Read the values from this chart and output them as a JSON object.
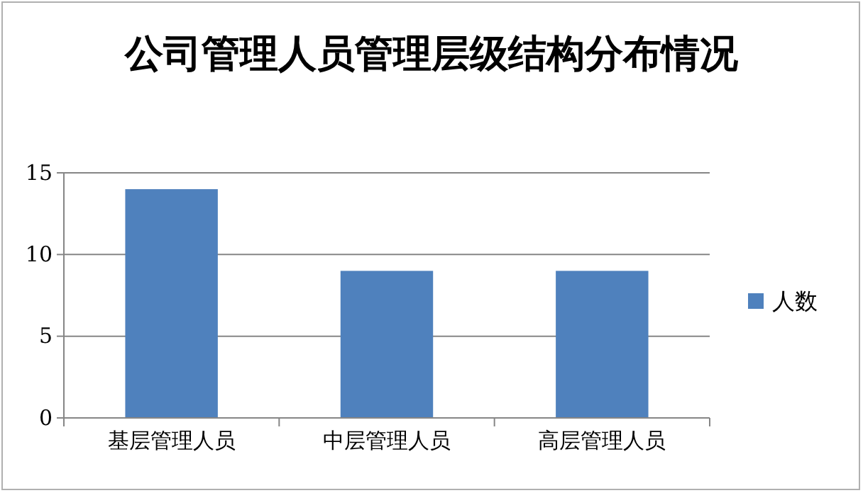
{
  "chart_data": {
    "type": "bar",
    "title": "公司管理人员管理层级结构分布情况",
    "categories": [
      "基层管理人员",
      "中层管理人员",
      "高层管理人员"
    ],
    "series": [
      {
        "name": "人数",
        "color": "#4f81bd",
        "values": [
          14,
          9,
          9
        ]
      }
    ],
    "ylim": [
      0,
      15
    ],
    "yticks": [
      0,
      5,
      10,
      15
    ],
    "grid": "y",
    "legend": "right"
  }
}
